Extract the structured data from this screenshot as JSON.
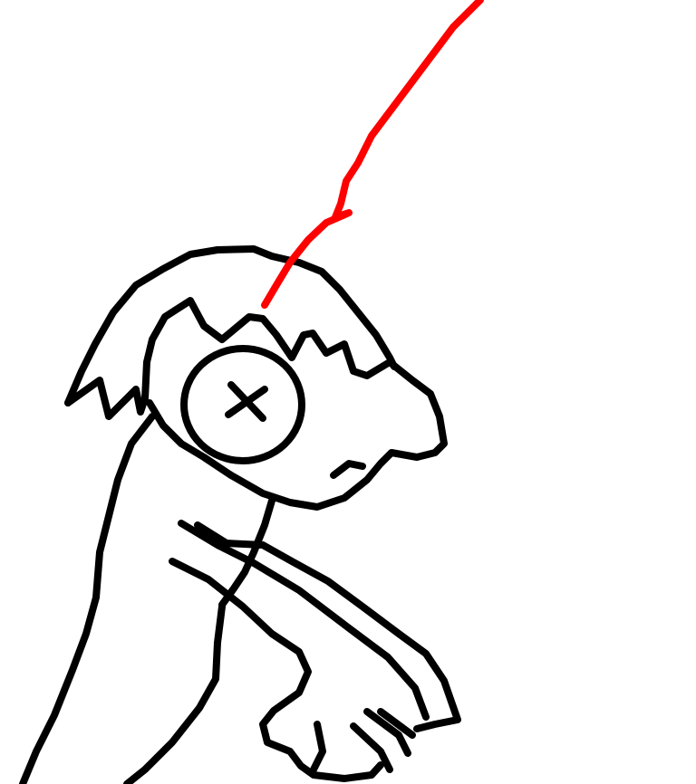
{
  "drawing": {
    "background": "#ffffff",
    "ink_color": "#000000",
    "accent_color": "#ff0000"
  }
}
